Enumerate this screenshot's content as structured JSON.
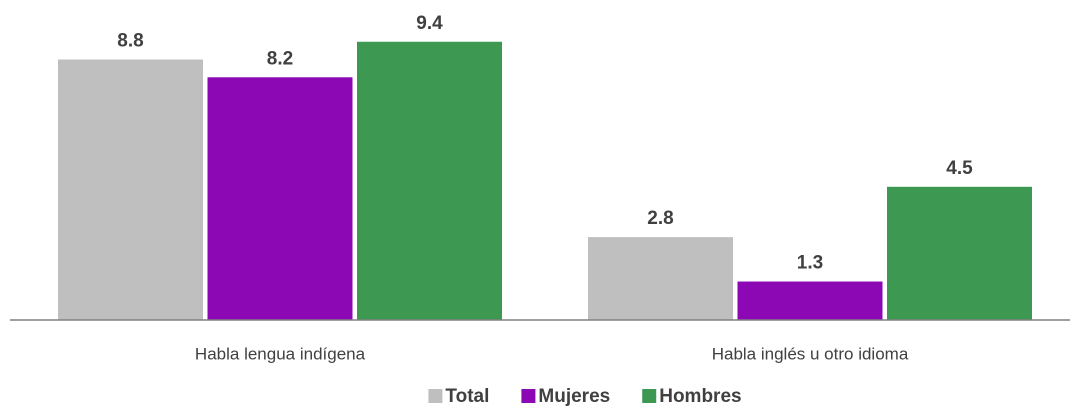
{
  "chart_data": {
    "type": "bar",
    "categories": [
      "Habla lengua indígena",
      "Habla inglés u otro idioma"
    ],
    "series": [
      {
        "name": "Total",
        "color": "#bfbfbf",
        "values": [
          8.8,
          2.8
        ]
      },
      {
        "name": "Mujeres",
        "color": "#8b08b4",
        "values": [
          8.2,
          1.3
        ]
      },
      {
        "name": "Hombres",
        "color": "#3d9852",
        "values": [
          9.4,
          4.5
        ]
      }
    ],
    "ylim": [
      0,
      10
    ],
    "legend": "bottom"
  }
}
